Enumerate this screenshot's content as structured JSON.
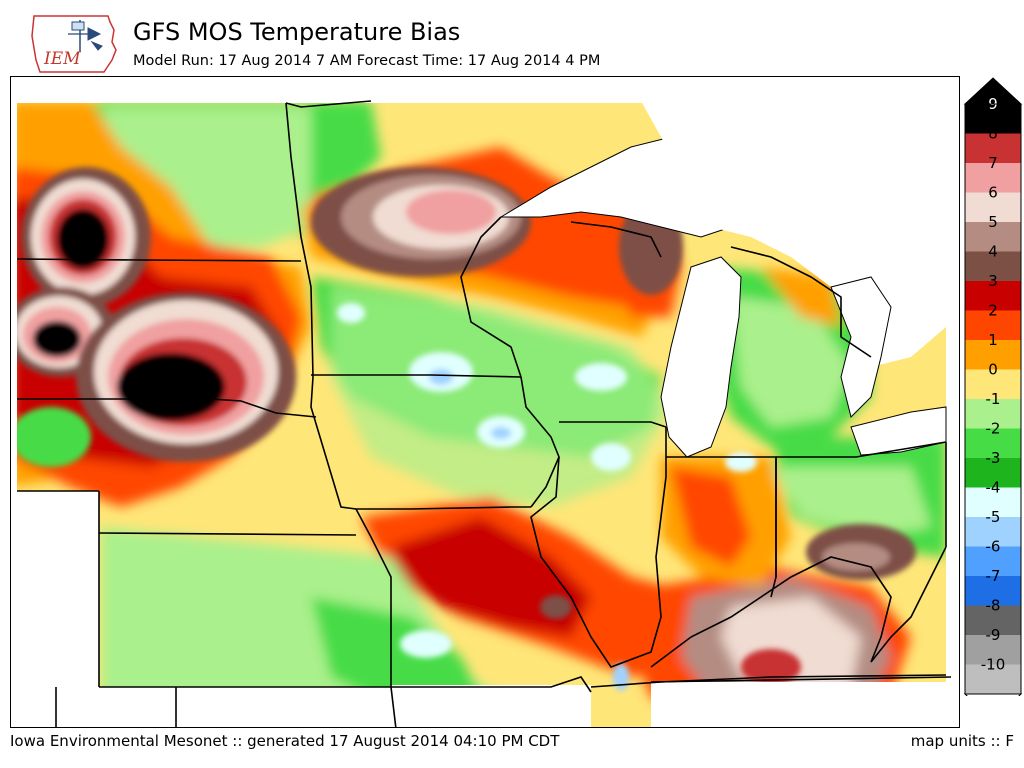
{
  "header": {
    "logo_text": "IEM",
    "title": "GFS MOS Temperature Bias",
    "subtitle": "Model Run: 17 Aug 2014 7 AM Forecast Time: 17 Aug 2014 4 PM"
  },
  "footer": {
    "left": "Iowa Environmental Mesonet :: generated 17 August 2014 04:10 PM CDT",
    "right": "map units :: F"
  },
  "legend": {
    "levels": [
      {
        "label": "9",
        "color": "#000000"
      },
      {
        "label": "8",
        "color": "#c83232"
      },
      {
        "label": "7",
        "color": "#f0a0a0"
      },
      {
        "label": "6",
        "color": "#f0dcd2"
      },
      {
        "label": "5",
        "color": "#b48c82"
      },
      {
        "label": "4",
        "color": "#7d5046"
      },
      {
        "label": "3",
        "color": "#c80000"
      },
      {
        "label": "2",
        "color": "#ff4600"
      },
      {
        "label": "1",
        "color": "#ffa000"
      },
      {
        "label": "0",
        "color": "#ffe678"
      },
      {
        "label": "-1",
        "color": "#aaf08c"
      },
      {
        "label": "-2",
        "color": "#46dc46"
      },
      {
        "label": "-3",
        "color": "#1eb41e"
      },
      {
        "label": "-4",
        "color": "#e0ffff"
      },
      {
        "label": "-5",
        "color": "#a0d2ff"
      },
      {
        "label": "-6",
        "color": "#50a0ff"
      },
      {
        "label": "-7",
        "color": "#1e6ee6"
      },
      {
        "label": "-8",
        "color": "#646464"
      },
      {
        "label": "-9",
        "color": "#a0a0a0"
      },
      {
        "label": "-10",
        "color": "#bebebe"
      }
    ],
    "under_color": "#ffffff"
  },
  "map": {
    "ocean_color": "#ffffff",
    "boundary_color": "#000000"
  }
}
